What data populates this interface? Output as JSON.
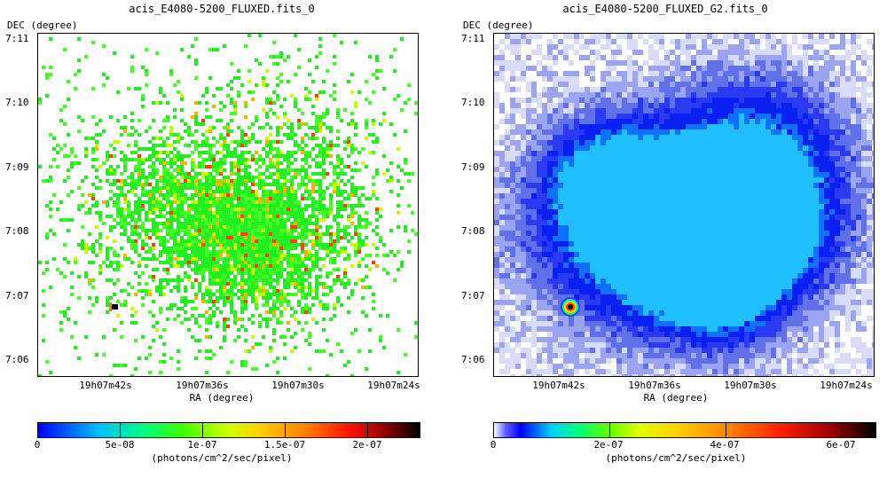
{
  "panels": [
    {
      "title": "acis_E4080-5200_FLUXED.fits_0",
      "dec_label": "DEC (degree)",
      "ra_label": "RA (degree)",
      "y_ticks": [
        "7:11",
        "7:10",
        "7:09",
        "7:08",
        "7:07",
        "7:06"
      ],
      "x_ticks": [
        "19h07m42s",
        "19h07m36s",
        "19h07m30s",
        "19h07m24s"
      ],
      "colorbar_ticks": [
        "0",
        "5e-08",
        "1e-07",
        "1.5e-07",
        "2e-07"
      ],
      "colorbar_unit": "(photons/cm^2/sec/pixel)"
    },
    {
      "title": "acis_E4080-5200_FLUXED_G2.fits_0",
      "dec_label": "DEC (degree)",
      "ra_label": "RA (degree)",
      "y_ticks": [
        "7:11",
        "7:10",
        "7:09",
        "7:08",
        "7:07",
        "7:06"
      ],
      "x_ticks": [
        "19h07m42s",
        "19h07m36s",
        "19h07m30s",
        "19h07m24s"
      ],
      "colorbar_ticks": [
        "0",
        "2e-07",
        "4e-07",
        "6e-07"
      ],
      "colorbar_unit": "(photons/cm^2/sec/pixel)"
    }
  ]
}
